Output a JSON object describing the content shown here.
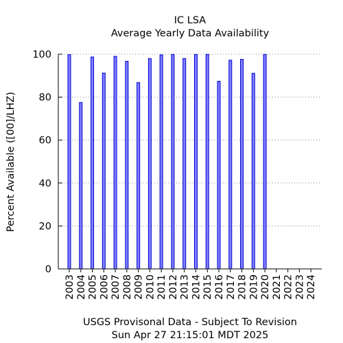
{
  "chart_data": {
    "type": "bar",
    "title": "IC LSA",
    "subtitle": "Average Yearly Data Availability",
    "ylabel": "Percent Available ([00]/LHZ)",
    "xlabel": "USGS Provisonal Data - Subject To Revision",
    "timestamp": "Sun Apr 27 21:15:01 MDT 2025",
    "ylim": [
      0,
      100
    ],
    "yticks": [
      0,
      20,
      40,
      60,
      80,
      100
    ],
    "grid": true,
    "bar_color": "#8080ff",
    "bar_edge_color": "#0000cc",
    "categories": [
      "2003",
      "2004",
      "2005",
      "2006",
      "2007",
      "2008",
      "2009",
      "2010",
      "2011",
      "2012",
      "2013",
      "2014",
      "2015",
      "2016",
      "2017",
      "2018",
      "2019",
      "2020",
      "2021",
      "2022",
      "2023",
      "2024"
    ],
    "values": [
      99.8,
      77.5,
      98.7,
      91.2,
      99.0,
      96.7,
      86.8,
      98.0,
      99.7,
      99.9,
      98.0,
      99.9,
      99.9,
      87.4,
      97.2,
      97.6,
      91.1,
      99.9,
      0,
      0,
      0,
      0
    ]
  }
}
